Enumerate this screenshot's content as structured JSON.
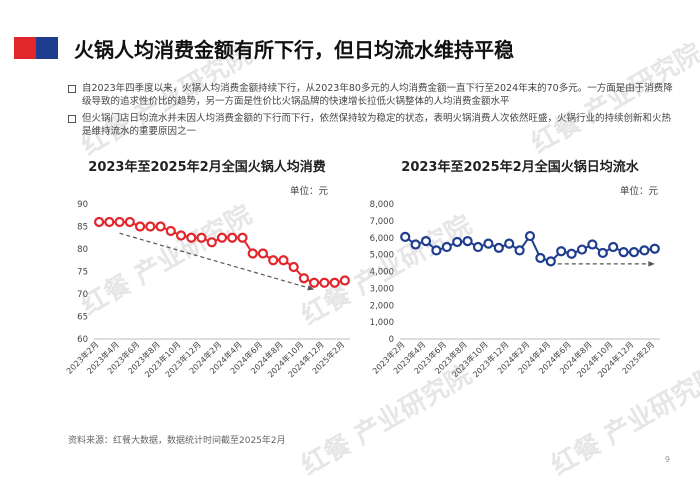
{
  "page": {
    "title": "火锅人均消费金额有所下行，但日均流水维持平稳",
    "bullets": [
      "自2023年四季度以来，火锅人均消费金额持续下行，从2023年80多元的人均消费金额一直下行至2024年末的70多元。一方面是由于消费降级导致的追求性价比的趋势，另一方面是性价比火锅品牌的快速增长拉低火锅整体的人均消费金额水平",
      "但火锅门店日均流水并未因人均消费金额的下行而下行，依然保持较为稳定的状态，表明火锅消费人次依然旺盛，火锅行业的持续创新和火热是维持流水的重要原因之一"
    ],
    "footnote": "资料来源：红餐大数据，数据统计时间截至2025年2月",
    "page_number": "9",
    "watermark": "红餐 产业研究院",
    "colors": {
      "accent_red": "#e1262c",
      "accent_blue": "#1f3d8f"
    }
  },
  "chart_data": [
    {
      "type": "line",
      "title": "2023年至2025年2月全国火锅人均消费",
      "unit_label": "单位：元",
      "color": "#e1262c",
      "ylim": [
        60,
        90
      ],
      "yticks": [
        60,
        65,
        70,
        75,
        80,
        85,
        90
      ],
      "categories": [
        "2023年2月",
        "2023年3月",
        "2023年4月",
        "2023年5月",
        "2023年6月",
        "2023年7月",
        "2023年8月",
        "2023年9月",
        "2023年10月",
        "2023年11月",
        "2023年12月",
        "2024年1月",
        "2024年2月",
        "2024年3月",
        "2024年4月",
        "2024年5月",
        "2024年6月",
        "2024年7月",
        "2024年8月",
        "2024年9月",
        "2024年10月",
        "2024年11月",
        "2024年12月",
        "2025年1月",
        "2025年2月"
      ],
      "xtick_labels": [
        "2023年2月",
        "2023年4月",
        "2023年6月",
        "2023年8月",
        "2023年10月",
        "2023年12月",
        "2024年2月",
        "2024年4月",
        "2024年6月",
        "2024年8月",
        "2024年10月",
        "2024年12月",
        "2025年2月"
      ],
      "values": [
        86,
        86,
        86,
        86,
        85,
        85,
        85,
        84,
        83,
        82.5,
        82.5,
        81.5,
        82.5,
        82.5,
        82.5,
        79,
        79,
        77.5,
        77.5,
        76,
        73.5,
        72.5,
        72.5,
        72.5,
        73
      ],
      "trend": {
        "from_index": 2,
        "from_value": 83.5,
        "to_index": 21,
        "to_value": 71
      },
      "grid": false
    },
    {
      "type": "line",
      "title": "2023年至2025年2月全国火锅日均流水",
      "unit_label": "单位：元",
      "color": "#1f3d8f",
      "ylim": [
        0,
        8000
      ],
      "yticks": [
        0,
        1000,
        2000,
        3000,
        4000,
        5000,
        6000,
        7000,
        8000
      ],
      "ytick_labels": [
        "0",
        "1,000",
        "2,000",
        "3,000",
        "4,000",
        "5,000",
        "6,000",
        "7,000",
        "8,000"
      ],
      "categories": [
        "2023年2月",
        "2023年3月",
        "2023年4月",
        "2023年5月",
        "2023年6月",
        "2023年7月",
        "2023年8月",
        "2023年9月",
        "2023年10月",
        "2023年11月",
        "2023年12月",
        "2024年1月",
        "2024年2月",
        "2024年3月",
        "2024年4月",
        "2024年5月",
        "2024年6月",
        "2024年7月",
        "2024年8月",
        "2024年9月",
        "2024年10月",
        "2024年11月",
        "2024年12月",
        "2025年1月",
        "2025年2月"
      ],
      "xtick_labels": [
        "2023年2月",
        "2023年4月",
        "2023年6月",
        "2023年8月",
        "2023年10月",
        "2023年12月",
        "2024年2月",
        "2024年4月",
        "2024年6月",
        "2024年8月",
        "2024年10月",
        "2024年12月",
        "2025年2月"
      ],
      "values": [
        6050,
        5600,
        5800,
        5250,
        5450,
        5750,
        5800,
        5450,
        5650,
        5400,
        5650,
        5250,
        6100,
        4800,
        4600,
        5200,
        5050,
        5300,
        5600,
        5100,
        5450,
        5150,
        5150,
        5250,
        5350
      ],
      "trend": {
        "from_index": 14,
        "from_value": 4450,
        "to_index": 24,
        "to_value": 4450
      },
      "grid": false
    }
  ]
}
